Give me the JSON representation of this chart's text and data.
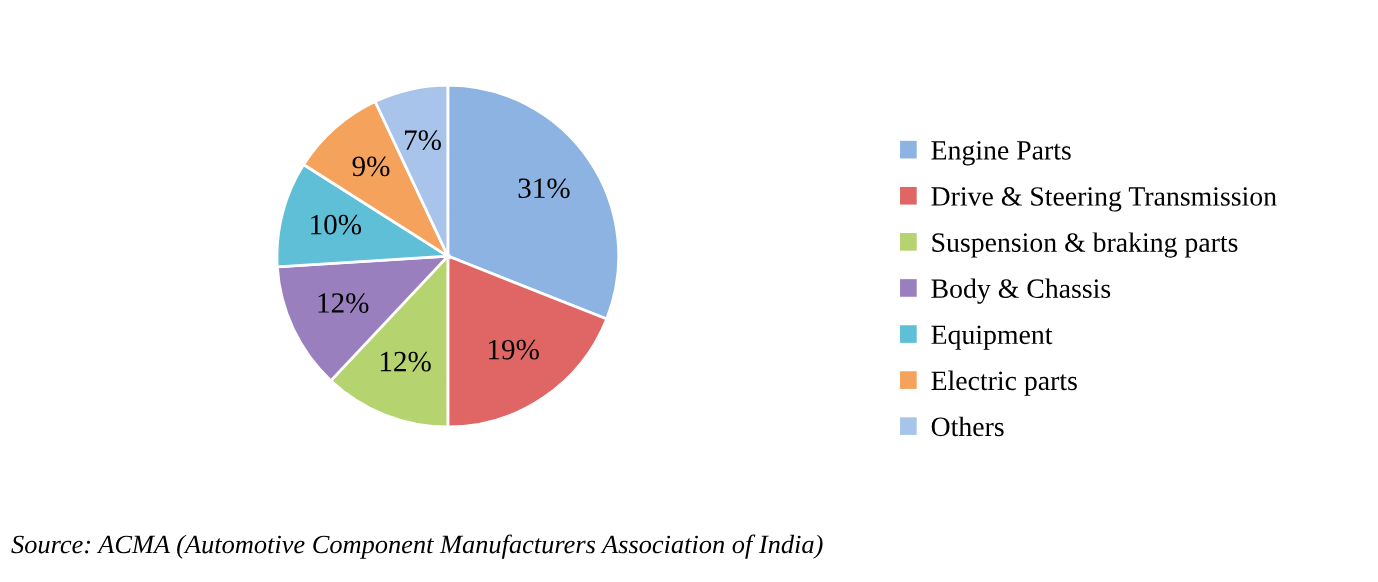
{
  "chart_data": {
    "type": "pie",
    "categories": [
      "Engine Parts",
      "Drive & Steering Transmission",
      "Suspension & braking parts",
      "Body & Chassis",
      "Equipment",
      "Electric parts",
      "Others"
    ],
    "values": [
      31,
      19,
      12,
      12,
      10,
      9,
      7
    ],
    "colors": [
      "#8db3e2",
      "#e06666",
      "#b5d36f",
      "#9a7fbf",
      "#5fbfd6",
      "#f5a25d",
      "#a9c4eb"
    ],
    "value_labels": [
      "31%",
      "19%",
      "12%",
      "12%",
      "10%",
      "9%",
      "7%"
    ],
    "legend": "right",
    "annotations": [
      "Source: ACMA (Automotive Component Manufacturers Association of India)"
    ]
  }
}
